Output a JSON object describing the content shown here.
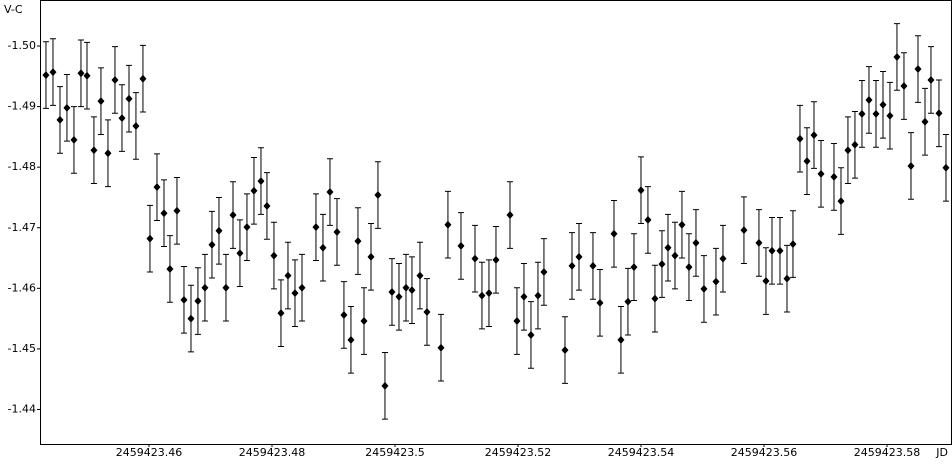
{
  "chart_data": {
    "type": "scatter",
    "y_axis_label": "V-C",
    "x_axis_label": "JD",
    "color": "#000000",
    "error": 0.0055,
    "x": [
      2459423.44325,
      2459423.44439,
      2459423.44553,
      2459423.44666,
      2459423.4478,
      2459423.44894,
      2459423.44992,
      2459423.45105,
      2459423.45219,
      2459423.45333,
      2459423.45447,
      2459423.45561,
      2459423.45675,
      2459423.45788,
      2459423.45902,
      2459423.46016,
      2459423.4613,
      2459423.46244,
      2459423.46341,
      2459423.46455,
      2459423.46569,
      2459423.46683,
      2459423.46796,
      2459423.4691,
      2459423.47024,
      2459423.47138,
      2459423.47252,
      2459423.47366,
      2459423.47479,
      2459423.47593,
      2459423.47707,
      2459423.47821,
      2459423.47918,
      2459423.48032,
      2459423.48146,
      2459423.4826,
      2459423.48374,
      2459423.48488,
      2459423.48715,
      2459423.48829,
      2459423.48943,
      2459423.49057,
      2459423.4917,
      2459423.49284,
      2459423.49398,
      2459423.49496,
      2459423.4961,
      2459423.49723,
      2459423.49837,
      2459423.49951,
      2459423.50065,
      2459423.50179,
      2459423.50276,
      2459423.50406,
      2459423.5052,
      2459423.50748,
      2459423.50861,
      2459423.51073,
      2459423.51301,
      2459423.51414,
      2459423.51528,
      2459423.51642,
      2459423.5187,
      2459423.51983,
      2459423.52097,
      2459423.52211,
      2459423.52325,
      2459423.52422,
      2459423.52764,
      2459423.52878,
      2459423.52992,
      2459423.53219,
      2459423.53333,
      2459423.53561,
      2459423.53674,
      2459423.53788,
      2459423.53886,
      2459423.54,
      2459423.54113,
      2459423.54227,
      2459423.54341,
      2459423.54439,
      2459423.54553,
      2459423.54666,
      2459423.5478,
      2459423.54894,
      2459423.55024,
      2459423.55219,
      2459423.55333,
      2459423.55674,
      2459423.55918,
      2459423.56032,
      2459423.5613,
      2459423.5626,
      2459423.56374,
      2459423.56471,
      2459423.56585,
      2459423.56699,
      2459423.56813,
      2459423.56927,
      2459423.57138,
      2459423.57252,
      2459423.57365,
      2459423.57479,
      2459423.57593,
      2459423.57707,
      2459423.57821,
      2459423.57935,
      2459423.58048,
      2459423.58162,
      2459423.58276,
      2459423.5839,
      2459423.58504,
      2459423.58618,
      2459423.58715,
      2459423.58845,
      2459423.58959
    ],
    "values": [
      -1.4952,
      -1.4957,
      -1.4878,
      -1.4898,
      -1.4845,
      -1.4955,
      -1.4951,
      -1.4828,
      -1.4909,
      -1.4823,
      -1.4944,
      -1.4881,
      -1.4913,
      -1.4868,
      -1.4946,
      -1.4682,
      -1.4767,
      -1.4724,
      -1.4632,
      -1.4728,
      -1.4581,
      -1.455,
      -1.4579,
      -1.4601,
      -1.4672,
      -1.4695,
      -1.4601,
      -1.4721,
      -1.4658,
      -1.4701,
      -1.4761,
      -1.4777,
      -1.4736,
      -1.4654,
      -1.4559,
      -1.4621,
      -1.4592,
      -1.4601,
      -1.4701,
      -1.4667,
      -1.4759,
      -1.4693,
      -1.4556,
      -1.4515,
      -1.4678,
      -1.4546,
      -1.4652,
      -1.4754,
      -1.4439,
      -1.4594,
      -1.4586,
      -1.4601,
      -1.4597,
      -1.4621,
      -1.4561,
      -1.4502,
      -1.4705,
      -1.467,
      -1.4649,
      -1.4588,
      -1.4592,
      -1.4647,
      -1.4721,
      -1.4546,
      -1.4586,
      -1.4523,
      -1.4588,
      -1.4627,
      -1.4498,
      -1.4637,
      -1.4652,
      -1.4637,
      -1.4576,
      -1.469,
      -1.4515,
      -1.4578,
      -1.4635,
      -1.4762,
      -1.4713,
      -1.4583,
      -1.464,
      -1.4667,
      -1.4654,
      -1.4705,
      -1.4635,
      -1.4675,
      -1.4599,
      -1.4611,
      -1.4649,
      -1.4696,
      -1.4675,
      -1.4612,
      -1.4662,
      -1.4662,
      -1.4616,
      -1.4673,
      -1.4847,
      -1.481,
      -1.4853,
      -1.4789,
      -1.4784,
      -1.4744,
      -1.4828,
      -1.4837,
      -1.4888,
      -1.4911,
      -1.4888,
      -1.4903,
      -1.4885,
      -1.4982,
      -1.4934,
      -1.4802,
      -1.4962,
      -1.4875,
      -1.4944,
      -1.4889,
      -1.4799
    ],
    "xlim": [
      2459423.44228,
      2459423.59057
    ],
    "ylim": [
      -1.4343,
      -1.5076
    ],
    "xticks": [
      2459423.46,
      2459423.48,
      2459423.5,
      2459423.52,
      2459423.54,
      2459423.56,
      2459423.58
    ],
    "yticks": [
      {
        "value": -1.5,
        "label": "-1.50"
      },
      -1.49,
      -1.48,
      -1.47,
      -1.46,
      -1.45,
      -1.44
    ],
    "grid": false
  }
}
